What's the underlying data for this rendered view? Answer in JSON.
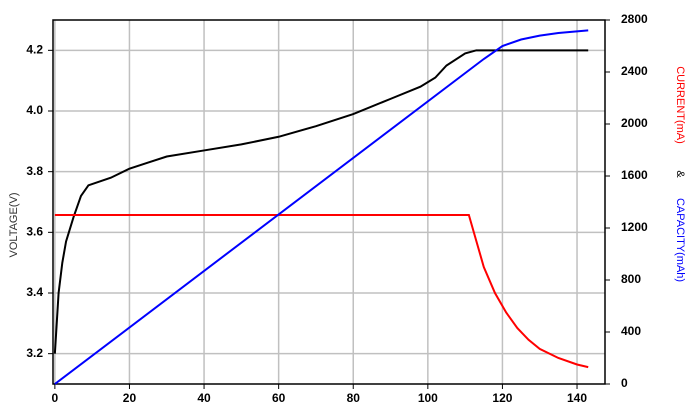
{
  "chart_data": {
    "type": "line",
    "ylabel": "VOLTAGE(V)",
    "y2label": [
      "CURRENT(mA)",
      "&",
      "CAPACITY(mAh)"
    ],
    "xlim": [
      -0.5,
      147.5
    ],
    "xticks": [
      0,
      20,
      40,
      60,
      80,
      100,
      120,
      140
    ],
    "ylim": [
      3.1,
      4.3
    ],
    "yticks": [
      3.2,
      3.4,
      3.6,
      3.8,
      {
        "value": 4,
        "label": "4.0"
      },
      4.2
    ],
    "y2lim": [
      0,
      2800
    ],
    "y2ticks": [
      0,
      400,
      800,
      1200,
      1600,
      2000,
      2400,
      2800
    ],
    "grid": true,
    "series": [
      {
        "color": "#000000",
        "axis": "y",
        "x": [
          0,
          0.5,
          1,
          2,
          3,
          5,
          7,
          9,
          15,
          20,
          25,
          30,
          40,
          50,
          60,
          70,
          80,
          90,
          98,
          102,
          105,
          110,
          113,
          143
        ],
        "values": [
          3.2,
          3.3,
          3.4,
          3.5,
          3.57,
          3.65,
          3.72,
          3.755,
          3.78,
          3.81,
          3.83,
          3.85,
          3.87,
          3.89,
          3.915,
          3.95,
          3.99,
          4.04,
          4.08,
          4.11,
          4.15,
          4.19,
          4.2,
          4.2
        ]
      },
      {
        "color": "#ff0000",
        "axis": "y2",
        "x": [
          0,
          111,
          113,
          115,
          118,
          121,
          124,
          127,
          130,
          135,
          140,
          143
        ],
        "values": [
          1300,
          1300,
          1100,
          900,
          700,
          550,
          430,
          340,
          270,
          200,
          150,
          130
        ]
      },
      {
        "color": "#0000ff",
        "axis": "y2",
        "x": [
          0,
          115,
          120,
          125,
          130,
          135,
          143
        ],
        "values": [
          0,
          2500,
          2600,
          2650,
          2680,
          2700,
          2720
        ]
      }
    ]
  }
}
